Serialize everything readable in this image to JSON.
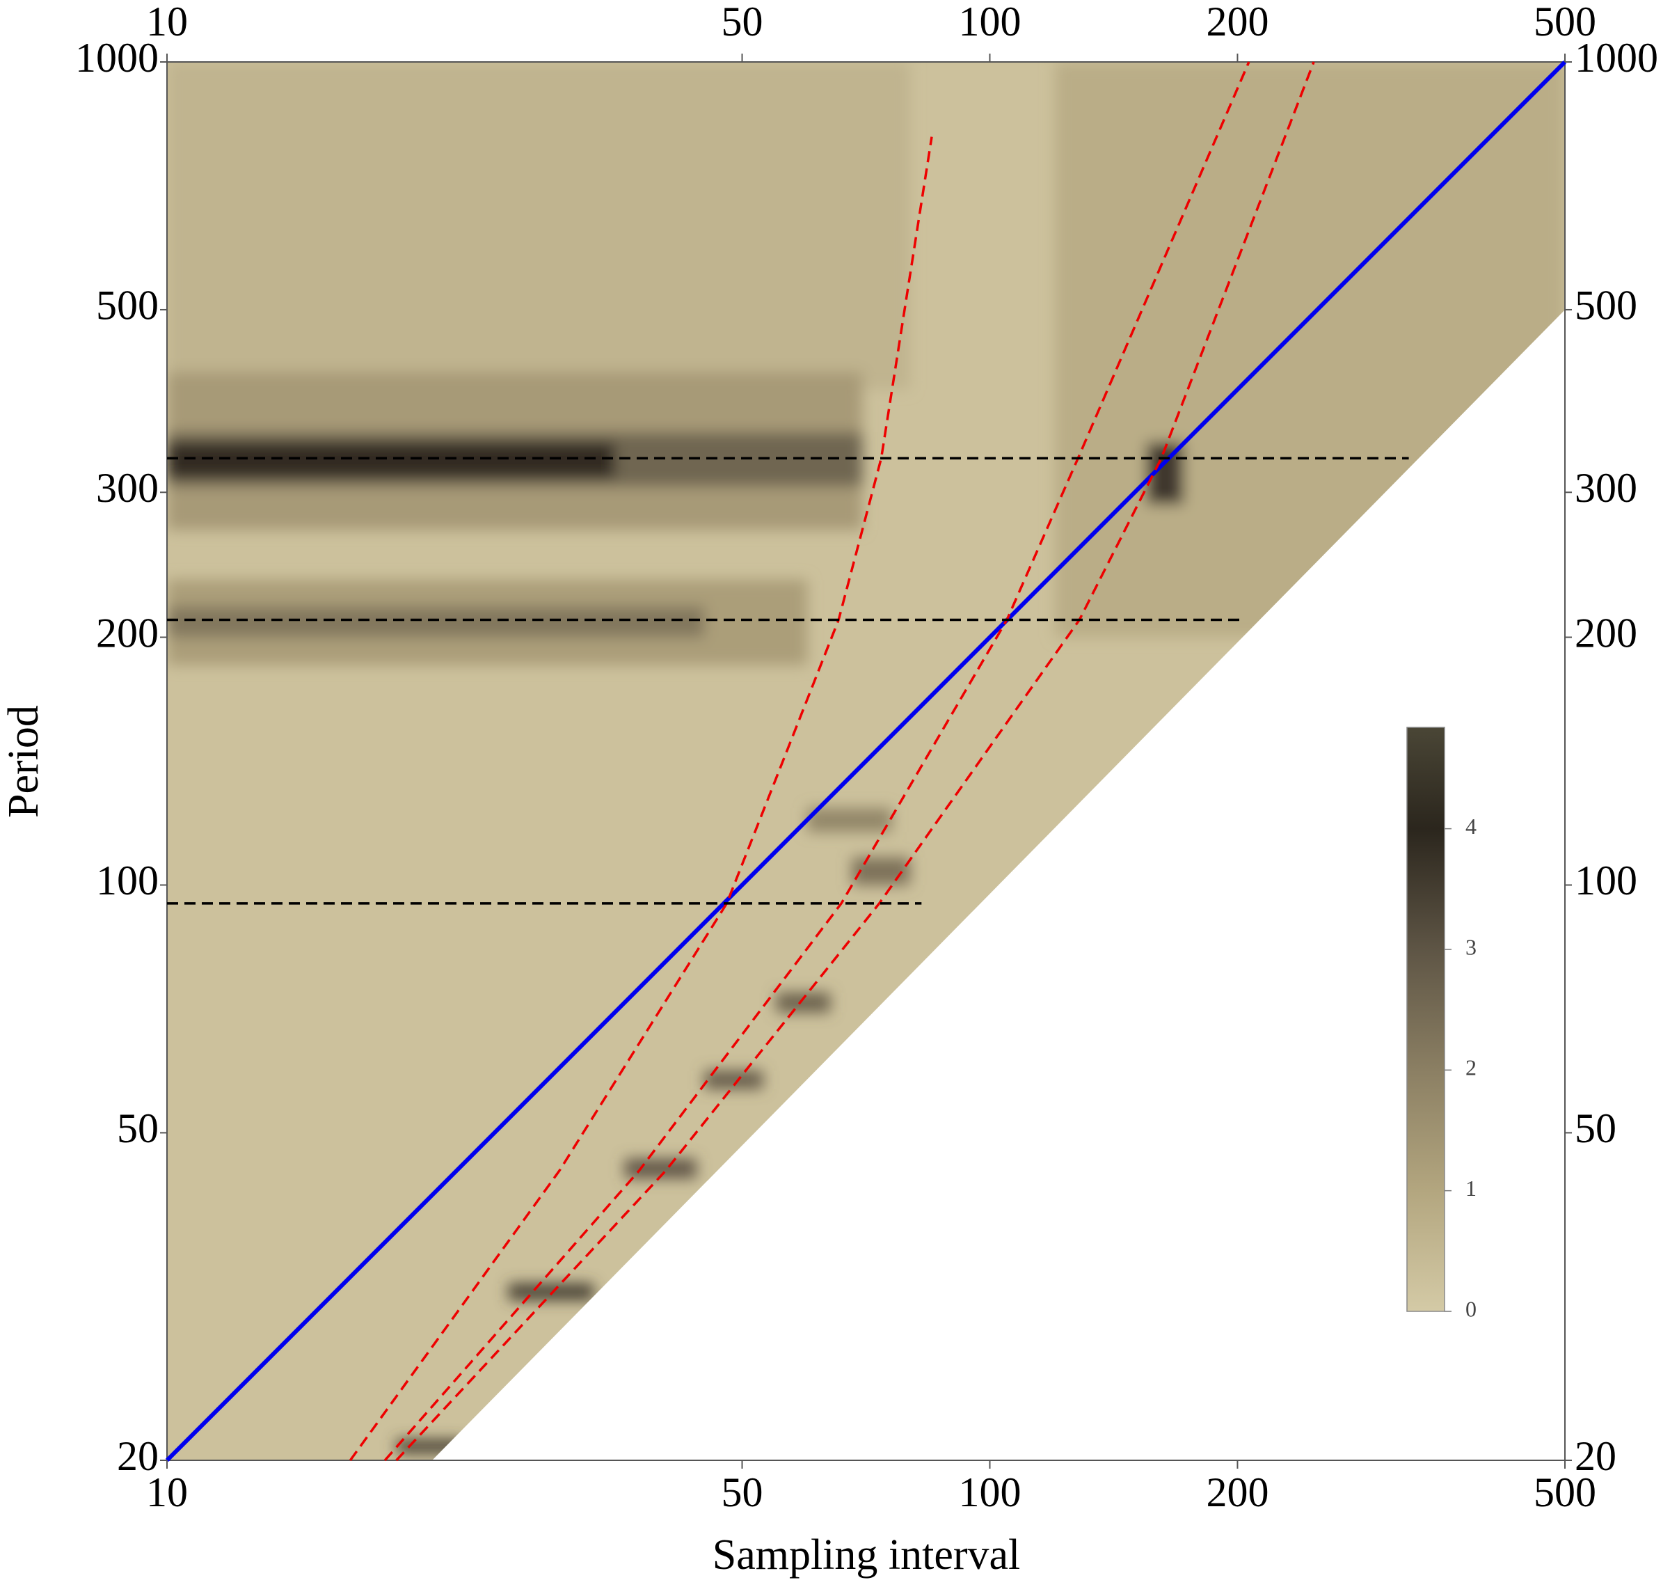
{
  "chart_data": {
    "type": "heatmap",
    "xlabel": "Sampling interval",
    "ylabel": "Period",
    "xscale": "log",
    "yscale": "log",
    "xlim": [
      10,
      500
    ],
    "ylim": [
      20,
      1000
    ],
    "xticks": [
      10,
      50,
      100,
      200,
      500
    ],
    "yticks": [
      20,
      50,
      100,
      200,
      300,
      500,
      1000
    ],
    "clim": [
      0,
      4.84
    ],
    "cticks": [
      0,
      1,
      2,
      3,
      4
    ],
    "colormap": [
      {
        "value": 0,
        "color": "#d4caa6"
      },
      {
        "value": 1,
        "color": "#b3a67f"
      },
      {
        "value": 2,
        "color": "#8b7f63"
      },
      {
        "value": 3,
        "color": "#5e5545"
      },
      {
        "value": 4,
        "color": "#2b261d"
      },
      {
        "value": 4.84,
        "color": "#4a4636"
      }
    ],
    "coverage": {
      "x": [
        10,
        10,
        500,
        500,
        21
      ],
      "y": [
        20,
        1000,
        1000,
        500,
        20
      ],
      "value": 0.25
    },
    "cells": [
      {
        "x": [
          10,
          80
        ],
        "y": [
          400,
          1000
        ],
        "value": 0.6
      },
      {
        "x": [
          120,
          500
        ],
        "y": [
          200,
          1000
        ],
        "value": 0.8
      },
      {
        "x": [
          10,
          70
        ],
        "y": [
          270,
          420
        ],
        "value": 1.3
      },
      {
        "x": [
          10,
          60
        ],
        "y": [
          185,
          235
        ],
        "value": 1.2
      },
      {
        "x": [
          10,
          45
        ],
        "y": [
          200,
          218
        ],
        "value": 2.2
      },
      {
        "x": [
          10,
          70
        ],
        "y": [
          305,
          355
        ],
        "value": 2.6
      },
      {
        "x": [
          10,
          35
        ],
        "y": [
          312,
          345
        ],
        "value": 3.9
      },
      {
        "x": [
          155,
          172
        ],
        "y": [
          290,
          345
        ],
        "value": 3.6
      },
      {
        "x": [
          19,
          23
        ],
        "y": [
          20.4,
          21.2
        ],
        "value": 3.4
      },
      {
        "x": [
          26,
          33
        ],
        "y": [
          31.3,
          32.8
        ],
        "value": 3.4
      },
      {
        "x": [
          36,
          44
        ],
        "y": [
          44,
          46.5
        ],
        "value": 2.9
      },
      {
        "x": [
          45,
          53
        ],
        "y": [
          56.5,
          59.5
        ],
        "value": 2.8
      },
      {
        "x": [
          55,
          64
        ],
        "y": [
          70,
          74
        ],
        "value": 2.7
      },
      {
        "x": [
          68,
          80
        ],
        "y": [
          100,
          108
        ],
        "value": 2.3
      },
      {
        "x": [
          60,
          76
        ],
        "y": [
          116,
          124
        ],
        "value": 1.8
      }
    ],
    "series": [
      {
        "color": "#0000ee",
        "dash": false,
        "x": [
          10,
          500
        ],
        "y": [
          20,
          1000
        ]
      },
      {
        "color": "#ee0000",
        "dash": true,
        "x": [
          16.7,
          30,
          47.9,
          65.5,
          73.8,
          85
        ],
        "y": [
          20,
          45,
          95,
          210,
          330,
          811
        ]
      },
      {
        "color": "#ee0000",
        "dash": true,
        "x": [
          18.4,
          37.5,
          66,
          104.9,
          128,
          206.5
        ],
        "y": [
          20,
          45,
          95,
          210,
          330,
          1000
        ]
      },
      {
        "color": "#ee0000",
        "dash": true,
        "x": [
          19,
          40.4,
          73.4,
          128.5,
          161.6,
          247.6
        ],
        "y": [
          20,
          45,
          95,
          210,
          330,
          1000
        ]
      },
      {
        "color": "#000000",
        "dash": true,
        "x": [
          10,
          323
        ],
        "y": [
          330,
          330
        ]
      },
      {
        "color": "#000000",
        "dash": true,
        "x": [
          10,
          202
        ],
        "y": [
          210,
          210
        ]
      },
      {
        "color": "#000000",
        "dash": true,
        "x": [
          10,
          82.6
        ],
        "y": [
          95,
          95
        ]
      }
    ]
  }
}
